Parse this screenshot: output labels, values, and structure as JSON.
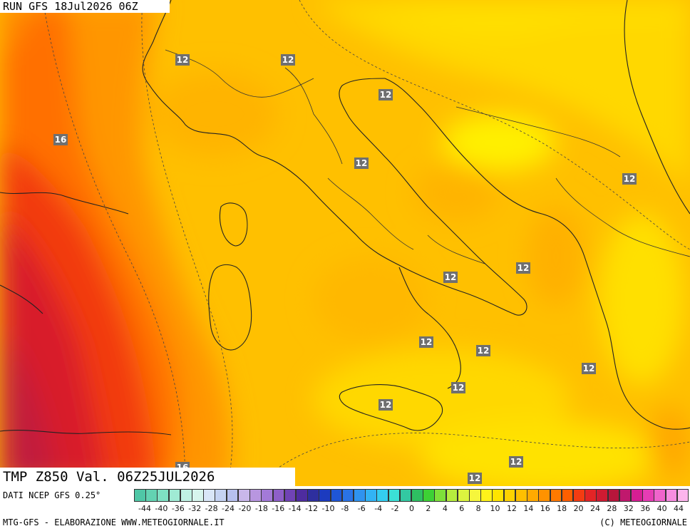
{
  "header": {
    "run": "RUN GFS 18Jul2026 06Z"
  },
  "title_box": {
    "text": "TMP Z850 Val. 06Z25JUL2026"
  },
  "credit_line": "DATI NCEP GFS 0.25°",
  "footer": {
    "left": "MTG-GFS - ELABORAZIONE WWW.METEOGIORNALE.IT",
    "right": "(C) METEOGIORNALE"
  },
  "contour_labels": [
    "12",
    "12",
    "12",
    "16",
    "12",
    "12",
    "12",
    "12",
    "12",
    "12",
    "12",
    "12",
    "12",
    "12",
    "12",
    "16"
  ],
  "legend": {
    "ticks": [
      "-44",
      "-40",
      "-36",
      "-32",
      "-28",
      "-24",
      "-20",
      "-18",
      "-16",
      "-14",
      "-12",
      "-10",
      "-8",
      "-6",
      "-4",
      "-2",
      "0",
      "2",
      "4",
      "6",
      "8",
      "10",
      "12",
      "14",
      "16",
      "18",
      "20",
      "24",
      "28",
      "32",
      "36",
      "40",
      "44"
    ],
    "colors": [
      "#4fc7a6",
      "#63d3b2",
      "#7ee0c3",
      "#a0ead4",
      "#c0f2e4",
      "#d7f5ed",
      "#d9e6f7",
      "#c5d3f2",
      "#b7c0ee",
      "#c9b7ea",
      "#b896e0",
      "#a37ad8",
      "#8e5fc9",
      "#7043b5",
      "#4e2c9f",
      "#2e2f9e",
      "#1c3bbf",
      "#1f56d6",
      "#2a73e6",
      "#2f93ef",
      "#32b3f4",
      "#34cdf0",
      "#3be0d6",
      "#33c9a2",
      "#2ebf62",
      "#3dd135",
      "#7ee03a",
      "#b6ec3e",
      "#dcf43f",
      "#f6f63c",
      "#fff21a",
      "#ffe400",
      "#ffd200",
      "#ffbf00",
      "#ffaa00",
      "#ff9200",
      "#ff7a00",
      "#ff5f00",
      "#f43c12",
      "#e32426",
      "#cf1b32",
      "#b8163b",
      "#c0186d",
      "#d61e93",
      "#e63cb4",
      "#f064cc",
      "#f78de0",
      "#fcb5ec"
    ]
  }
}
